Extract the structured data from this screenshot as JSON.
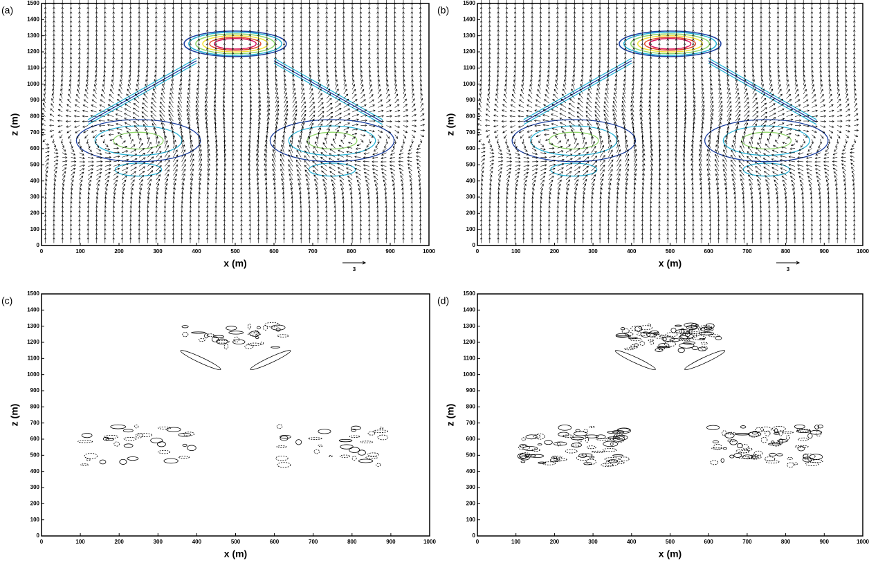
{
  "chart_data": [
    {
      "type": "vector",
      "panel_label": "(a)",
      "xlabel": "x (m)",
      "ylabel": "z (m)",
      "reference_vector": 3,
      "xlim": [
        0,
        1000
      ],
      "ylim": [
        0,
        1500
      ],
      "xticks": [
        0,
        100,
        200,
        300,
        400,
        500,
        600,
        700,
        800,
        900,
        1000
      ],
      "yticks": [
        0,
        100,
        200,
        300,
        400,
        500,
        600,
        700,
        800,
        900,
        1000,
        1100,
        1200,
        1300,
        1400,
        1500
      ]
    },
    {
      "type": "vector",
      "panel_label": "(b)",
      "xlabel": "x (m)",
      "ylabel": "z (m)",
      "reference_vector": 3,
      "xlim": [
        0,
        1000
      ],
      "ylim": [
        0,
        1500
      ],
      "xticks": [
        0,
        100,
        200,
        300,
        400,
        500,
        600,
        700,
        800,
        900,
        1000
      ],
      "yticks": [
        0,
        100,
        200,
        300,
        400,
        500,
        600,
        700,
        800,
        900,
        1000,
        1100,
        1200,
        1300,
        1400,
        1500
      ]
    },
    {
      "type": "contour",
      "panel_label": "(c)",
      "xlabel": "x (m)",
      "ylabel": "z (m)",
      "xlim": [
        0,
        1000
      ],
      "ylim": [
        0,
        1500
      ],
      "xticks": [
        0,
        100,
        200,
        300,
        400,
        500,
        600,
        700,
        800,
        900,
        1000
      ],
      "yticks": [
        0,
        100,
        200,
        300,
        400,
        500,
        600,
        700,
        800,
        900,
        1000,
        1100,
        1200,
        1300,
        1400,
        1500
      ]
    },
    {
      "type": "contour",
      "panel_label": "(d)",
      "xlabel": "x (m)",
      "ylabel": "z (m)",
      "xlim": [
        0,
        1000
      ],
      "ylim": [
        0,
        1500
      ],
      "xticks": [
        0,
        100,
        200,
        300,
        400,
        500,
        600,
        700,
        800,
        900,
        1000
      ],
      "yticks": [
        0,
        100,
        200,
        300,
        400,
        500,
        600,
        700,
        800,
        900,
        1000,
        1100,
        1200,
        1300,
        1400,
        1500
      ]
    }
  ]
}
